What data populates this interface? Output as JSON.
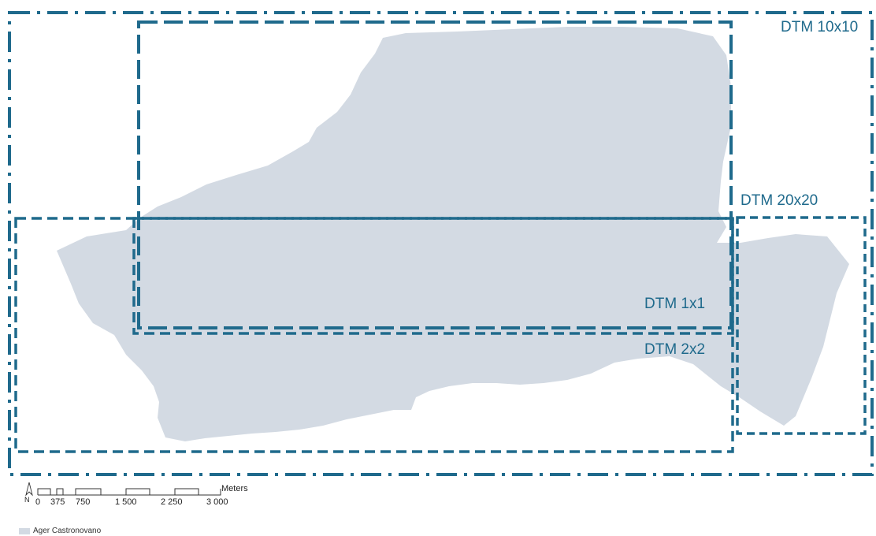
{
  "map": {
    "area_fill": "#d3dae3",
    "frame_color": "#1f6a8c"
  },
  "extents": [
    {
      "label": "DTM 10x10",
      "line_style": "dash-dot"
    },
    {
      "label": "DTM 20x20",
      "line_style": "dashed"
    },
    {
      "label": "DTM 1x1",
      "line_style": "long-dash"
    },
    {
      "label": "DTM 2x2",
      "line_style": "dashed"
    }
  ],
  "scale_bar": {
    "north_label": "N",
    "unit": "Meters",
    "ticks": [
      "0",
      "375",
      "750",
      "1 500",
      "2 250",
      "3 000"
    ]
  },
  "legend": {
    "items": [
      {
        "label": "Ager Castronovano",
        "icon": "polygon-swatch"
      }
    ]
  }
}
